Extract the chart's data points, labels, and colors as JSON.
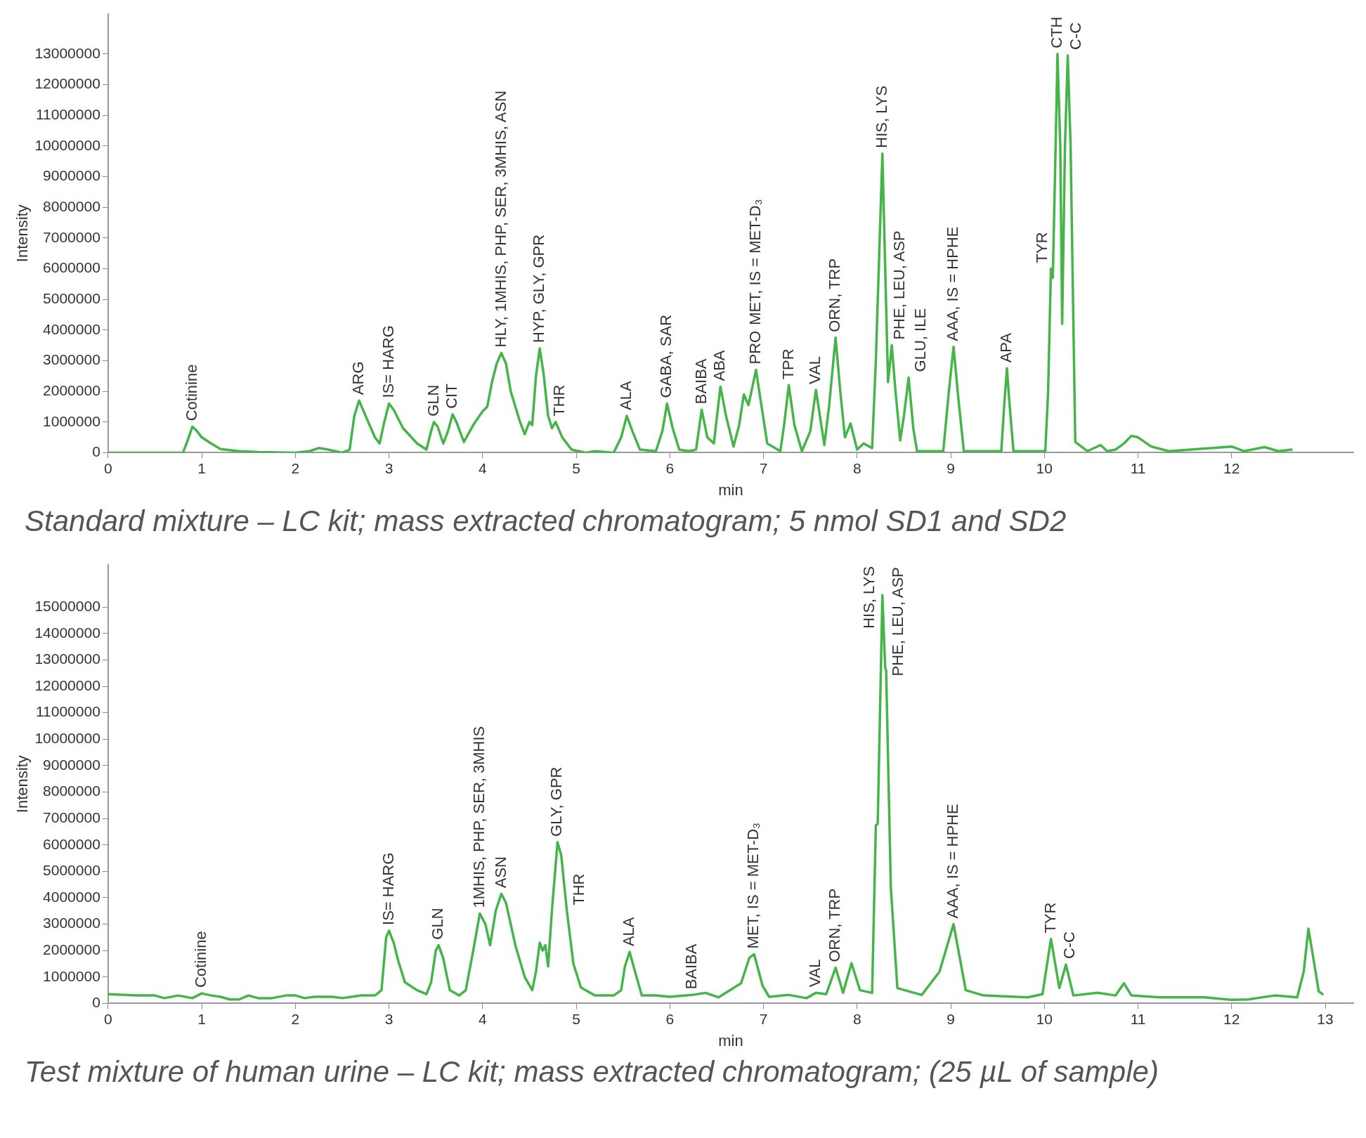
{
  "chart_data": [
    {
      "type": "line",
      "title": "Standard mixture – LC kit; mass extracted chromatogram; 5 nmol SD1 and SD2",
      "xlabel": "min",
      "ylabel": "Intensity",
      "xlim": [
        0,
        13.3
      ],
      "xticks": [
        0,
        1,
        2,
        3,
        4,
        5,
        6,
        7,
        8,
        9,
        10,
        11,
        12
      ],
      "ylim": [
        0,
        14300000
      ],
      "yticks": [
        0,
        1000000,
        2000000,
        3000000,
        4000000,
        5000000,
        6000000,
        7000000,
        8000000,
        9000000,
        10000000,
        11000000,
        12000000,
        13000000
      ],
      "grid": false,
      "legend": false,
      "marker": "none",
      "line_style": "solid",
      "series": [
        {
          "color": "#46b549",
          "x": [
            0,
            0.8,
            0.85,
            0.9,
            0.95,
            1.0,
            1.1,
            1.2,
            1.4,
            1.6,
            2.0,
            2.15,
            2.25,
            2.35,
            2.5,
            2.58,
            2.63,
            2.68,
            2.75,
            2.85,
            2.9,
            2.95,
            3.0,
            3.05,
            3.15,
            3.3,
            3.4,
            3.45,
            3.48,
            3.52,
            3.58,
            3.63,
            3.68,
            3.72,
            3.8,
            3.9,
            4.0,
            4.05,
            4.1,
            4.15,
            4.2,
            4.25,
            4.3,
            4.4,
            4.45,
            4.5,
            4.53,
            4.57,
            4.61,
            4.65,
            4.7,
            4.74,
            4.78,
            4.85,
            4.95,
            5.1,
            5.2,
            5.4,
            5.48,
            5.54,
            5.6,
            5.68,
            5.85,
            5.92,
            5.97,
            6.03,
            6.1,
            6.2,
            6.28,
            6.34,
            6.4,
            6.47,
            6.54,
            6.6,
            6.68,
            6.74,
            6.79,
            6.84,
            6.92,
            6.98,
            7.04,
            7.18,
            7.22,
            7.27,
            7.33,
            7.41,
            7.5,
            7.56,
            7.65,
            7.7,
            7.77,
            7.82,
            7.87,
            7.93,
            8.0,
            8.07,
            8.16,
            8.2,
            8.27,
            8.3,
            8.33,
            8.37,
            8.41,
            8.46,
            8.5,
            8.55,
            8.6,
            8.64,
            8.92,
            8.98,
            9.03,
            9.08,
            9.14,
            9.54,
            9.57,
            9.6,
            9.63,
            9.67,
            10.01,
            10.04,
            10.07,
            10.09,
            10.12,
            10.14,
            10.17,
            10.19,
            10.22,
            10.25,
            10.28,
            10.33,
            10.46,
            10.6,
            10.67,
            10.76,
            10.85,
            10.93,
            11.0,
            11.14,
            11.33,
            12.0,
            12.13,
            12.35,
            12.5,
            12.64
          ],
          "values": [
            0,
            0,
            400000,
            850000,
            700000,
            500000,
            300000,
            120000,
            50000,
            20000,
            0,
            50000,
            150000,
            100000,
            0,
            100000,
            1200000,
            1700000,
            1200000,
            500000,
            300000,
            1000000,
            1600000,
            1400000,
            800000,
            300000,
            100000,
            700000,
            1000000,
            850000,
            300000,
            700000,
            1250000,
            1000000,
            350000,
            900000,
            1350000,
            1500000,
            2300000,
            2900000,
            3250000,
            2900000,
            2000000,
            1000000,
            600000,
            1000000,
            900000,
            2500000,
            3400000,
            2600000,
            1200000,
            800000,
            1000000,
            500000,
            100000,
            0,
            50000,
            0,
            500000,
            1200000,
            700000,
            100000,
            50000,
            700000,
            1600000,
            800000,
            100000,
            50000,
            100000,
            1400000,
            500000,
            300000,
            2150000,
            1200000,
            200000,
            900000,
            1900000,
            1550000,
            2700000,
            1500000,
            300000,
            50000,
            900000,
            2200000,
            900000,
            50000,
            700000,
            2050000,
            250000,
            1500000,
            3750000,
            2000000,
            500000,
            950000,
            100000,
            300000,
            150000,
            3000000,
            9750000,
            6000000,
            2300000,
            3500000,
            2000000,
            400000,
            1200000,
            2450000,
            800000,
            50000,
            50000,
            2000000,
            3450000,
            1800000,
            50000,
            50000,
            1500000,
            2750000,
            1500000,
            50000,
            50000,
            2000000,
            6000000,
            5700000,
            10000000,
            13000000,
            10000000,
            4200000,
            10000000,
            12950000,
            10000000,
            350000,
            50000,
            250000,
            50000,
            100000,
            300000,
            550000,
            500000,
            200000,
            50000,
            200000,
            50000,
            180000,
            50000,
            100000
          ]
        }
      ],
      "annotations": [
        {
          "text": "Cotinine",
          "x": 0.9,
          "y": 850000
        },
        {
          "text": "ARG",
          "x": 2.68,
          "y": 1700000
        },
        {
          "text": "IS= HARG",
          "x": 3.0,
          "y": 1600000
        },
        {
          "text": "GLN",
          "x": 3.48,
          "y": 1000000
        },
        {
          "text": "CIT",
          "x": 3.68,
          "y": 1250000
        },
        {
          "text": "HLY, 1MHIS, PHP, SER, 3MHIS, ASN",
          "x": 4.2,
          "y": 3250000
        },
        {
          "text": "HYP, GLY, GPR",
          "x": 4.61,
          "y": 3400000
        },
        {
          "text": "THR",
          "x": 4.78,
          "y": 1000000
        },
        {
          "text": "ALA",
          "x": 5.54,
          "y": 1200000
        },
        {
          "text": "GABA, SAR",
          "x": 5.97,
          "y": 1600000
        },
        {
          "text": "BAIBA",
          "x": 6.34,
          "y": 1400000
        },
        {
          "text": "ABA",
          "x": 6.54,
          "y": 2150000
        },
        {
          "text": "PRO",
          "x": 6.92,
          "y": 2700000
        },
        {
          "text": "MET, IS = MET-D₃",
          "x": 6.92,
          "y": 2700000
        },
        {
          "text": "TPR",
          "x": 7.27,
          "y": 2200000
        },
        {
          "text": "VAL",
          "x": 7.56,
          "y": 2050000
        },
        {
          "text": "ORN, TRP",
          "x": 7.77,
          "y": 3750000
        },
        {
          "text": "HIS, LYS",
          "x": 8.27,
          "y": 9750000
        },
        {
          "text": "PHE, LEU, ASP",
          "x": 8.37,
          "y": 3500000
        },
        {
          "text": "GLU, ILE",
          "x": 8.55,
          "y": 2450000
        },
        {
          "text": "AAA, IS = HPHE",
          "x": 9.03,
          "y": 3450000
        },
        {
          "text": "APA",
          "x": 9.6,
          "y": 2750000
        },
        {
          "text": "TYR",
          "x": 10.07,
          "y": 6000000
        },
        {
          "text": "CTH",
          "x": 10.14,
          "y": 13000000
        },
        {
          "text": "C-C",
          "x": 10.25,
          "y": 12950000
        }
      ]
    },
    {
      "type": "line",
      "title": "Test mixture of human urine – LC kit; mass extracted chromatogram; (25 µL of sample)",
      "xlabel": "min",
      "ylabel": "Intensity",
      "xlim": [
        0,
        13.3
      ],
      "xticks": [
        0,
        1,
        2,
        3,
        4,
        5,
        6,
        7,
        8,
        9,
        10,
        11,
        12,
        13
      ],
      "ylim": [
        0,
        16600000
      ],
      "yticks": [
        0,
        1000000,
        2000000,
        3000000,
        4000000,
        5000000,
        6000000,
        7000000,
        8000000,
        9000000,
        10000000,
        11000000,
        12000000,
        13000000,
        14000000,
        15000000
      ],
      "grid": false,
      "legend": false,
      "marker": "none",
      "line_style": "solid",
      "series": [
        {
          "color": "#46b549",
          "x": [
            0,
            0.3,
            0.5,
            0.6,
            0.75,
            0.9,
            1.0,
            1.1,
            1.2,
            1.3,
            1.4,
            1.5,
            1.6,
            1.75,
            1.9,
            2.0,
            2.1,
            2.2,
            2.4,
            2.5,
            2.7,
            2.85,
            2.92,
            2.97,
            3.0,
            3.05,
            3.1,
            3.17,
            3.3,
            3.4,
            3.45,
            3.5,
            3.53,
            3.58,
            3.65,
            3.75,
            3.82,
            3.9,
            3.97,
            4.03,
            4.08,
            4.14,
            4.2,
            4.25,
            4.35,
            4.45,
            4.53,
            4.57,
            4.61,
            4.64,
            4.67,
            4.7,
            4.74,
            4.8,
            4.84,
            4.9,
            4.97,
            5.05,
            5.2,
            5.4,
            5.48,
            5.52,
            5.57,
            5.62,
            5.7,
            5.85,
            6.0,
            6.24,
            6.38,
            6.52,
            6.76,
            6.85,
            6.9,
            6.99,
            7.06,
            7.27,
            7.46,
            7.56,
            7.67,
            7.77,
            7.85,
            7.94,
            8.03,
            8.16,
            8.2,
            8.22,
            8.27,
            8.3,
            8.31,
            8.36,
            8.43,
            8.69,
            8.88,
            9.03,
            9.16,
            9.35,
            9.82,
            9.98,
            10.07,
            10.16,
            10.23,
            10.31,
            10.57,
            10.76,
            10.85,
            10.93,
            11.23,
            11.71,
            11.99,
            12.18,
            12.46,
            12.7,
            12.77,
            12.82,
            12.88,
            12.93,
            12.97
          ],
          "values": [
            350000,
            300000,
            300000,
            200000,
            300000,
            200000,
            380000,
            300000,
            250000,
            150000,
            150000,
            300000,
            200000,
            200000,
            300000,
            300000,
            200000,
            250000,
            250000,
            200000,
            300000,
            300000,
            500000,
            2500000,
            2750000,
            2300000,
            1600000,
            800000,
            500000,
            350000,
            800000,
            2000000,
            2200000,
            1700000,
            500000,
            300000,
            500000,
            2000000,
            3400000,
            3000000,
            2200000,
            3500000,
            4150000,
            3800000,
            2200000,
            1000000,
            500000,
            1200000,
            2300000,
            2000000,
            2200000,
            1400000,
            3500000,
            6100000,
            5600000,
            3500000,
            1500000,
            600000,
            300000,
            300000,
            500000,
            1400000,
            1950000,
            1300000,
            300000,
            300000,
            250000,
            320000,
            400000,
            230000,
            760000,
            1730000,
            1860000,
            670000,
            250000,
            320000,
            200000,
            400000,
            350000,
            1350000,
            400000,
            1520000,
            500000,
            400000,
            6730000,
            6800000,
            15450000,
            12700000,
            12600000,
            4400000,
            580000,
            320000,
            1200000,
            3000000,
            500000,
            300000,
            230000,
            350000,
            2440000,
            580000,
            1470000,
            300000,
            400000,
            300000,
            760000,
            300000,
            230000,
            230000,
            140000,
            150000,
            300000,
            230000,
            1200000,
            2830000,
            1560000,
            460000,
            350000
          ]
        }
      ],
      "annotations": [
        {
          "text": "Cotinine",
          "x": 1.0,
          "y": 380000
        },
        {
          "text": "IS= HARG",
          "x": 3.0,
          "y": 2750000
        },
        {
          "text": "GLN",
          "x": 3.53,
          "y": 2200000
        },
        {
          "text": "1MHIS, PHP, SER, 3MHIS",
          "x": 3.97,
          "y": 3400000
        },
        {
          "text": "ASN",
          "x": 4.2,
          "y": 4150000
        },
        {
          "text": "GLY, GPR",
          "x": 4.8,
          "y": 6100000
        },
        {
          "text": "THR",
          "x": 4.9,
          "y": 3500000
        },
        {
          "text": "ALA",
          "x": 5.57,
          "y": 1950000
        },
        {
          "text": "BAIBA",
          "x": 6.24,
          "y": 320000
        },
        {
          "text": "MET, IS = MET-D₃",
          "x": 6.9,
          "y": 1860000
        },
        {
          "text": "VAL",
          "x": 7.56,
          "y": 400000
        },
        {
          "text": "ORN, TRP",
          "x": 7.77,
          "y": 1350000
        },
        {
          "text": "HIS, LYS",
          "x": 8.27,
          "y": 15450000
        },
        {
          "text": "PHE, LEU, ASP",
          "x": 8.31,
          "y": 12600000
        },
        {
          "text": "AAA, IS = HPHE",
          "x": 9.03,
          "y": 3000000
        },
        {
          "text": "TYR",
          "x": 10.07,
          "y": 2440000
        },
        {
          "text": "C-C",
          "x": 10.23,
          "y": 1470000
        }
      ]
    }
  ]
}
